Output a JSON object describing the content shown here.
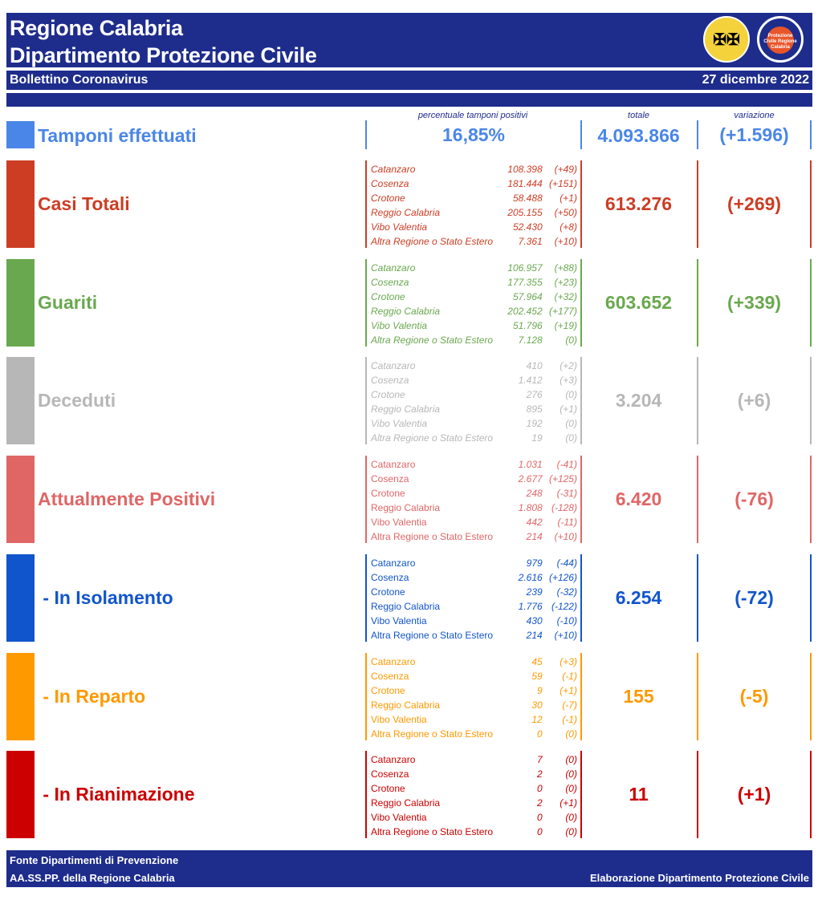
{
  "header": {
    "title_line1": "Regione Calabria",
    "title_line2": "Dipartimento Protezione Civile",
    "subtitle": "Bollettino Coronavirus",
    "date": "27 dicembre 2022",
    "logo1": "Regione Calabria coat of arms",
    "logo2_text": "Protezione Civile Regione Calabria"
  },
  "columns": {
    "percent": "percentuale tamponi positivi",
    "total": "totale",
    "variation": "variazione"
  },
  "tamponi": {
    "label": "Tamponi effettuati",
    "percent": "16,85%",
    "total": "4.093.866",
    "variation": "(+1.596)",
    "color": "#4a86e8"
  },
  "sections": [
    {
      "label": "Casi Totali",
      "color": "#cc3d24",
      "italic": true,
      "total": "613.276",
      "variation": "(+269)",
      "rows": [
        [
          "Catanzaro",
          "108.398",
          "(+49)"
        ],
        [
          "Cosenza",
          "181.444",
          "(+151)"
        ],
        [
          "Crotone",
          "58.488",
          "(+1)"
        ],
        [
          "Reggio Calabria",
          "205.155",
          "(+50)"
        ],
        [
          "Vibo Valentia",
          "52.430",
          "(+8)"
        ],
        [
          "Altra Regione o Stato Estero",
          "7.361",
          "(+10)"
        ]
      ]
    },
    {
      "label": "Guariti",
      "color": "#6aa84f",
      "italic": true,
      "total": "603.652",
      "variation": "(+339)",
      "rows": [
        [
          "Catanzaro",
          "106.957",
          "(+88)"
        ],
        [
          "Cosenza",
          "177.355",
          "(+23)"
        ],
        [
          "Crotone",
          "57.964",
          "(+32)"
        ],
        [
          "Reggio Calabria",
          "202.452",
          "(+177)"
        ],
        [
          "Vibo Valentia",
          "51.796",
          "(+19)"
        ],
        [
          "Altra Regione o Stato Estero",
          "7.128",
          "(0)"
        ]
      ]
    },
    {
      "label": "Deceduti",
      "color": "#b7b7b7",
      "italic": true,
      "total": "3.204",
      "variation": "(+6)",
      "rows": [
        [
          "Catanzaro",
          "410",
          "(+2)"
        ],
        [
          "Cosenza",
          "1.412",
          "(+3)"
        ],
        [
          "Crotone",
          "276",
          "(0)"
        ],
        [
          "Reggio Calabria",
          "895",
          "(+1)"
        ],
        [
          "Vibo Valentia",
          "192",
          "(0)"
        ],
        [
          "Altra Regione o Stato Estero",
          "19",
          "(0)"
        ]
      ]
    },
    {
      "label": "Attualmente Positivi",
      "color": "#e06666",
      "italic": false,
      "total": "6.420",
      "variation": "(-76)",
      "rows": [
        [
          "Catanzaro",
          "1.031",
          "(-41)"
        ],
        [
          "Cosenza",
          "2.677",
          "(+125)"
        ],
        [
          "Crotone",
          "248",
          "(-31)"
        ],
        [
          "Reggio Calabria",
          "1.808",
          "(-128)"
        ],
        [
          "Vibo Valentia",
          "442",
          "(-11)"
        ],
        [
          "Altra Regione o Stato Estero",
          "214",
          "(+10)"
        ]
      ]
    },
    {
      "label": " - In Isolamento",
      "color": "#1155cc",
      "italic": false,
      "total": "6.254",
      "variation": "(-72)",
      "rows": [
        [
          "Catanzaro",
          "979",
          "(-44)"
        ],
        [
          "Cosenza",
          "2.616",
          "(+126)"
        ],
        [
          "Crotone",
          "239",
          "(-32)"
        ],
        [
          "Reggio Calabria",
          "1.776",
          "(-122)"
        ],
        [
          "Vibo Valentia",
          "430",
          "(-10)"
        ],
        [
          "Altra Regione o Stato Estero",
          "214",
          "(+10)"
        ]
      ]
    },
    {
      "label": " - In Reparto",
      "color": "#ff9900",
      "italic": false,
      "total": "155",
      "variation": "(-5)",
      "rows": [
        [
          "Catanzaro",
          "45",
          "(+3)"
        ],
        [
          "Cosenza",
          "59",
          "(-1)"
        ],
        [
          "Crotone",
          "9",
          "(+1)"
        ],
        [
          "Reggio Calabria",
          "30",
          "(-7)"
        ],
        [
          "Vibo Valentia",
          "12",
          "(-1)"
        ],
        [
          "Altra Regione o Stato Estero",
          "0",
          "(0)"
        ]
      ]
    },
    {
      "label": " - In Rianimazione",
      "color": "#cc0000",
      "italic": false,
      "total": "11",
      "variation": "(+1)",
      "rows": [
        [
          "Catanzaro",
          "7",
          "(0)"
        ],
        [
          "Cosenza",
          "2",
          "(0)"
        ],
        [
          "Crotone",
          "0",
          "(0)"
        ],
        [
          "Reggio Calabria",
          "2",
          "(+1)"
        ],
        [
          "Vibo Valentia",
          "0",
          "(0)"
        ],
        [
          "Altra Regione o Stato Estero",
          "0",
          "(0)"
        ]
      ]
    }
  ],
  "footer": {
    "line1": "Fonte Dipartimenti di Prevenzione",
    "line2": "AA.SS.PP.  della Regione Calabria",
    "right": "Elaborazione Dipartimento Protezione Civile"
  }
}
